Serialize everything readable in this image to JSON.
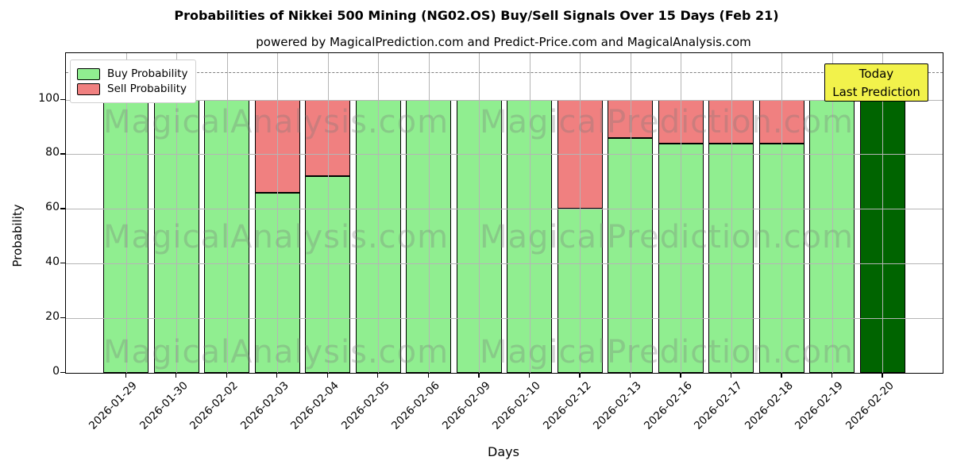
{
  "title": "Probabilities of Nikkei 500 Mining (NG02.OS) Buy/Sell Signals Over 15 Days (Feb 21)",
  "subtitle": "powered by MagicalPrediction.com and Predict-Price.com and MagicalAnalysis.com",
  "watermarks": {
    "left": "MagicalAnalysis.com",
    "right": "MagicalPrediction.com"
  },
  "legend": [
    {
      "label": "Buy Probability",
      "color": "#90EE90"
    },
    {
      "label": "Sell Probability",
      "color": "#F08080"
    }
  ],
  "annotation": {
    "line1": "Today",
    "line2": "Last Prediction",
    "bg_color": "#F2F24B",
    "border_color": "#000000"
  },
  "chart_data": {
    "type": "bar",
    "stacked": true,
    "title": "Probabilities of Nikkei 500 Mining (NG02.OS) Buy/Sell Signals Over 15 Days (Feb 21)",
    "xlabel": "Days",
    "ylabel": "Probability",
    "categories": [
      "2026-01-29",
      "2026-01-30",
      "2026-02-02",
      "2026-02-03",
      "2026-02-04",
      "2026-02-05",
      "2026-02-06",
      "2026-02-09",
      "2026-02-10",
      "2026-02-12",
      "2026-02-13",
      "2026-02-16",
      "2026-02-17",
      "2026-02-18",
      "2026-02-19",
      "2026-02-20"
    ],
    "series": [
      {
        "name": "Buy Probability",
        "color": "#90EE90",
        "values": [
          100,
          100,
          100,
          66,
          72,
          100,
          100,
          100,
          100,
          60,
          86,
          84,
          84,
          84,
          100,
          100
        ]
      },
      {
        "name": "Sell Probability",
        "color": "#F08080",
        "values": [
          0,
          0,
          0,
          34,
          28,
          0,
          0,
          0,
          0,
          40,
          14,
          16,
          16,
          16,
          0,
          0
        ]
      }
    ],
    "today_bar": {
      "index": 15,
      "color": "#006400",
      "label": "Today Last Prediction"
    },
    "yticks": [
      0,
      20,
      40,
      60,
      80,
      100
    ],
    "ylim": [
      0,
      117
    ],
    "dashed_line_y": 110,
    "dashed_line_color": "#7f7f7f",
    "grid": true,
    "grid_color": "#b5b5b5",
    "bar_edge_color": "#000000",
    "legend_position": "upper-left"
  }
}
